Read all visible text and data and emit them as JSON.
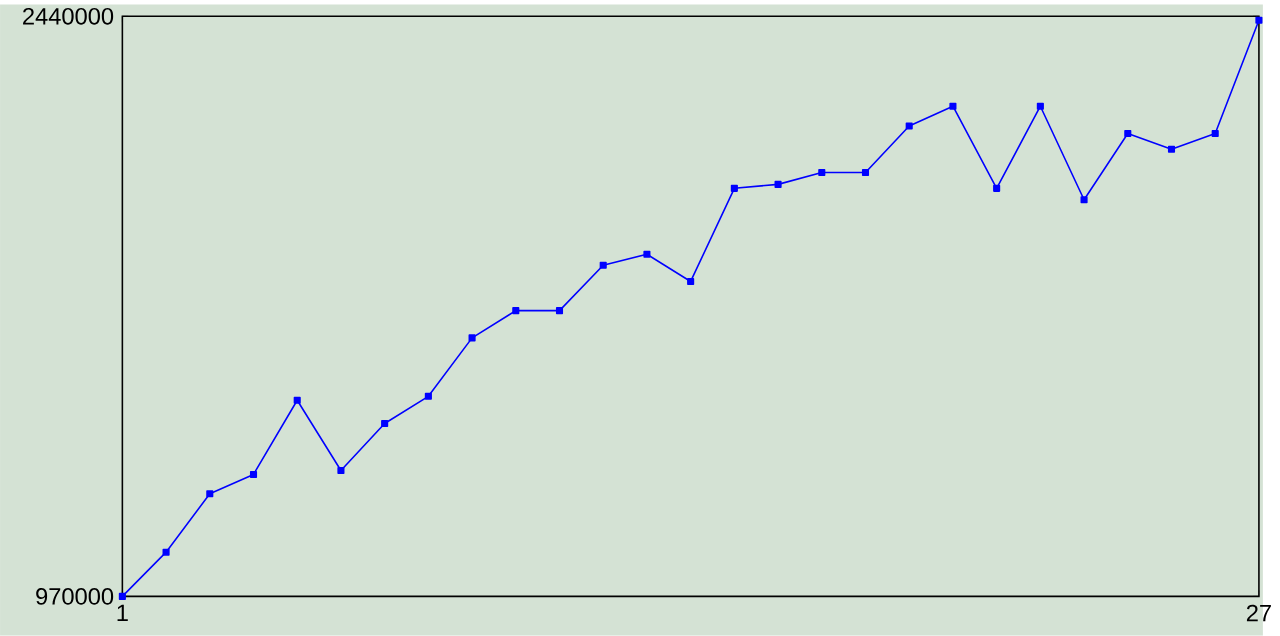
{
  "chart_data": {
    "type": "line",
    "x": [
      1,
      2,
      3,
      4,
      5,
      6,
      7,
      8,
      9,
      10,
      11,
      12,
      13,
      14,
      15,
      16,
      17,
      18,
      19,
      20,
      21,
      22,
      23,
      24,
      25,
      26,
      27
    ],
    "series": [
      {
        "color": "#0000ff",
        "values": [
          970000,
          1082000,
          1230000,
          1279000,
          1467000,
          1289000,
          1408000,
          1477000,
          1625000,
          1694000,
          1694000,
          1809000,
          1837000,
          1768000,
          2004000,
          2014000,
          2044000,
          2044000,
          2162000,
          2212000,
          2004000,
          2212000,
          1975000,
          2143000,
          2103000,
          2143000,
          2430000
        ]
      }
    ],
    "xlim": [
      1,
      27
    ],
    "ylim": [
      970000,
      2440000
    ],
    "xticks": [
      1,
      27
    ],
    "yticks": [
      970000,
      2440000
    ],
    "marker": "square",
    "line_style": "solid"
  }
}
